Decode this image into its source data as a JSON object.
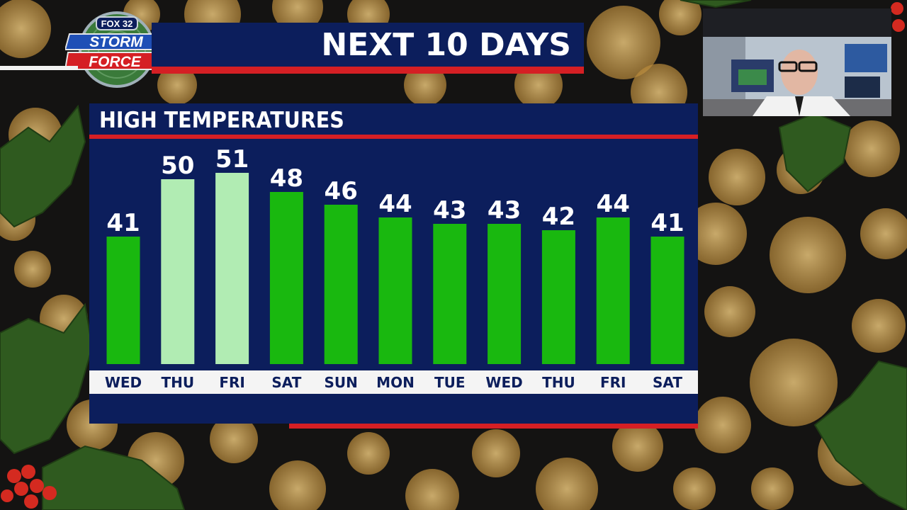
{
  "logo": {
    "top_text": "FOX 32",
    "line1": "STORM",
    "line2": "FORCE"
  },
  "header": {
    "title": "NEXT 10 DAYS"
  },
  "panel": {
    "title": "HIGH TEMPERATURES"
  },
  "chart_data": {
    "type": "bar",
    "title": "HIGH TEMPERATURES",
    "categories": [
      "WED",
      "THU",
      "FRI",
      "SAT",
      "SUN",
      "MON",
      "TUE",
      "WED",
      "THU",
      "FRI",
      "SAT"
    ],
    "values": [
      41,
      50,
      51,
      48,
      46,
      44,
      43,
      43,
      42,
      44,
      41
    ],
    "highlighted_categories": [
      1,
      2
    ],
    "bar_color": "#19b80f",
    "highlight_color": "#b1ecb3",
    "ylim": [
      21,
      53
    ],
    "grid": false,
    "legend": "none"
  },
  "colors": {
    "navy": "#0c1e5c",
    "red": "#d51f24",
    "strip": "#f4f4f4",
    "label_text": "#ffffff",
    "day_text": "#0c1e5c"
  },
  "inset": {
    "icon": "presenter-video-inset"
  }
}
